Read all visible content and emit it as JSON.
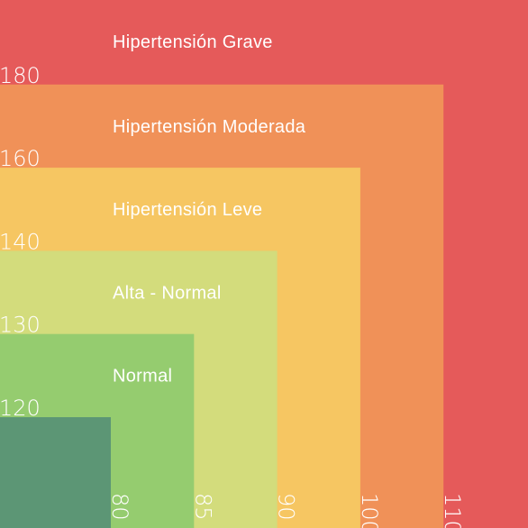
{
  "chart_data": {
    "type": "area",
    "x_ticks": [
      "80",
      "85",
      "90",
      "100",
      "110"
    ],
    "y_ticks": [
      "120",
      "130",
      "140",
      "160",
      "180"
    ],
    "zones": [
      {
        "label": "Hipertensión Grave",
        "x_max": null,
        "y_max": null,
        "color": "#e55a5a"
      },
      {
        "label": "Hipertensión Moderada",
        "x_max": 110,
        "y_max": 180,
        "color": "#f09158"
      },
      {
        "label": "Hipertensión Leve",
        "x_max": 100,
        "y_max": 160,
        "color": "#f6c662"
      },
      {
        "label": "Alta - Normal",
        "x_max": 90,
        "y_max": 140,
        "color": "#d3dc7c"
      },
      {
        "label": "Normal",
        "x_max": 85,
        "y_max": 130,
        "color": "#95cc6f"
      },
      {
        "label": "",
        "x_max": 80,
        "y_max": 120,
        "color": "#5c9675"
      }
    ]
  }
}
